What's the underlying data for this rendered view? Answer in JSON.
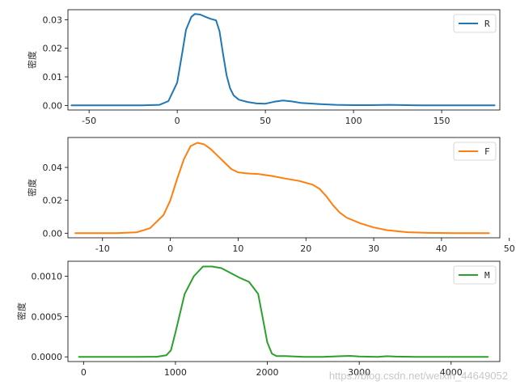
{
  "chart_data": [
    {
      "type": "line",
      "ylabel": "密度",
      "xlabel": "",
      "xlim": [
        -62,
        183
      ],
      "ylim": [
        -0.0016,
        0.0335
      ],
      "xticks": [
        -50,
        0,
        50,
        100,
        150
      ],
      "xtick_labels": [
        "-50",
        "0",
        "50",
        "100",
        "150"
      ],
      "yticks": [
        0.0,
        0.01,
        0.02,
        0.03
      ],
      "ytick_labels": [
        "0.00",
        "0.01",
        "0.02",
        "0.03"
      ],
      "legend_position": "upper right",
      "grid": false,
      "series": [
        {
          "name": "R",
          "color": "#1f77b4",
          "x": [
            -60,
            -20,
            -10,
            -5,
            0,
            3,
            5,
            8,
            10,
            13,
            16,
            19,
            22,
            24,
            26,
            28,
            30,
            32,
            35,
            40,
            45,
            50,
            55,
            60,
            65,
            70,
            80,
            90,
            100,
            110,
            120,
            130,
            140,
            150,
            160,
            170,
            180
          ],
          "y": [
            0.0,
            0.0,
            0.0002,
            0.0015,
            0.008,
            0.019,
            0.0265,
            0.031,
            0.032,
            0.0318,
            0.031,
            0.0303,
            0.0298,
            0.026,
            0.018,
            0.0105,
            0.006,
            0.0035,
            0.002,
            0.0012,
            0.0007,
            0.0006,
            0.0013,
            0.0017,
            0.0014,
            0.0009,
            0.0005,
            0.0002,
            0.0001,
            0.0001,
            0.0002,
            0.0001,
            0.0,
            0.0,
            0.0,
            0.0,
            0.0
          ]
        }
      ]
    },
    {
      "type": "line",
      "ylabel": "密度",
      "xlabel": "",
      "xlim": [
        -15.1,
        48.6
      ],
      "ylim": [
        -0.0028,
        0.0582
      ],
      "xticks": [
        -10,
        0,
        10,
        20,
        30,
        40,
        50
      ],
      "xtick_labels": [
        "-10",
        "0",
        "10",
        "20",
        "30",
        "40",
        "50"
      ],
      "yticks": [
        0.0,
        0.02,
        0.04
      ],
      "ytick_labels": [
        "0.00",
        "0.02",
        "0.04"
      ],
      "legend_position": "upper right",
      "grid": false,
      "series": [
        {
          "name": "F",
          "color": "#ff7f0e",
          "x": [
            -14,
            -8,
            -5,
            -3,
            -1,
            0,
            1,
            2,
            3,
            4,
            5,
            6,
            7,
            8,
            9,
            10,
            11,
            12,
            13,
            15,
            17,
            19,
            21,
            22,
            23,
            24,
            25,
            26,
            28,
            30,
            32,
            35,
            38,
            42,
            47
          ],
          "y": [
            0.0,
            0.0,
            0.0005,
            0.003,
            0.011,
            0.02,
            0.033,
            0.045,
            0.053,
            0.055,
            0.054,
            0.051,
            0.047,
            0.043,
            0.039,
            0.037,
            0.0365,
            0.0362,
            0.036,
            0.0348,
            0.0332,
            0.0318,
            0.0295,
            0.027,
            0.0225,
            0.017,
            0.0125,
            0.0095,
            0.006,
            0.0035,
            0.0018,
            0.0006,
            0.0002,
            0.0,
            0.0
          ]
        }
      ]
    },
    {
      "type": "line",
      "ylabel": "密度",
      "xlabel": "",
      "xlim": [
        -170,
        4530
      ],
      "ylim": [
        -5.8e-05,
        0.001185
      ],
      "xticks": [
        0,
        1000,
        2000,
        3000,
        4000
      ],
      "xtick_labels": [
        "0",
        "1000",
        "2000",
        "3000",
        "4000"
      ],
      "yticks": [
        0.0,
        0.0005,
        0.001
      ],
      "ytick_labels": [
        "0.0000",
        "0.0005",
        "0.0010"
      ],
      "legend_position": "upper right",
      "grid": false,
      "series": [
        {
          "name": "M",
          "color": "#2ca02c",
          "x": [
            -50,
            600,
            800,
            900,
            950,
            1000,
            1100,
            1200,
            1300,
            1400,
            1500,
            1600,
            1700,
            1800,
            1900,
            1950,
            2000,
            2050,
            2100,
            2200,
            2400,
            2600,
            2800,
            2900,
            3000,
            3200,
            3300,
            3400,
            3600,
            4000,
            4400
          ],
          "y": [
            0.0,
            0.0,
            2e-06,
            2e-05,
            8e-05,
            0.0003,
            0.00078,
            0.001,
            0.00112,
            0.00112,
            0.0011,
            0.00104,
            0.00098,
            0.00093,
            0.00078,
            0.00048,
            0.00018,
            4e-05,
            1e-05,
            1e-05,
            0.0,
            0.0,
            8e-06,
            1.2e-05,
            5e-06,
            0.0,
            8e-06,
            3e-06,
            0.0,
            0.0,
            0.0
          ]
        }
      ]
    }
  ],
  "watermark": "https://blog.csdn.net/weixin_44649052"
}
